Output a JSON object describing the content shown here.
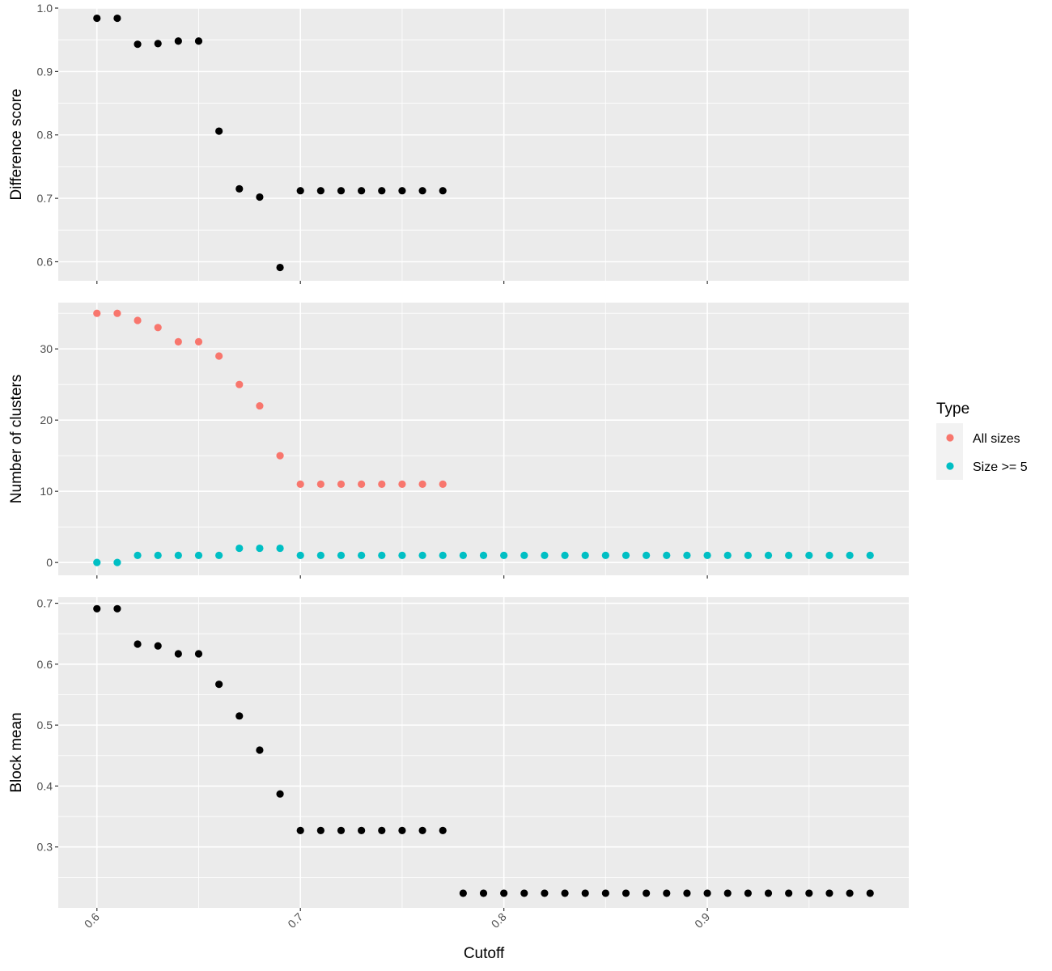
{
  "chart_data": [
    {
      "type": "scatter",
      "ylabel": "Difference score",
      "ylim": [
        0.57,
        1.0
      ],
      "yticks": [
        "0.6",
        "0.7",
        "0.8",
        "0.9",
        "1.0"
      ],
      "series": [
        {
          "color": "#000000",
          "x": [
            0.6,
            0.61,
            0.62,
            0.63,
            0.64,
            0.65,
            0.66,
            0.67,
            0.68,
            0.69,
            0.7,
            0.71,
            0.72,
            0.73,
            0.74,
            0.75,
            0.76,
            0.77
          ],
          "y": [
            0.984,
            0.984,
            0.943,
            0.944,
            0.948,
            0.948,
            0.806,
            0.715,
            0.702,
            0.591,
            0.712,
            0.712,
            0.712,
            0.712,
            0.712,
            0.712,
            0.712,
            0.712
          ]
        }
      ]
    },
    {
      "type": "scatter",
      "ylabel": "Number of clusters",
      "ylim": [
        -1.8,
        36.5
      ],
      "yticks": [
        "0",
        "10",
        "20",
        "30"
      ],
      "series": [
        {
          "name": "All sizes",
          "color": "#F8766D",
          "x": [
            0.6,
            0.61,
            0.62,
            0.63,
            0.64,
            0.65,
            0.66,
            0.67,
            0.68,
            0.69,
            0.7,
            0.71,
            0.72,
            0.73,
            0.74,
            0.75,
            0.76,
            0.77
          ],
          "y": [
            35,
            35,
            34,
            33,
            31,
            31,
            29,
            25,
            22,
            15,
            11,
            11,
            11,
            11,
            11,
            11,
            11,
            11
          ]
        },
        {
          "name": "Size >= 5",
          "color": "#00BFC4",
          "x": [
            0.6,
            0.61,
            0.62,
            0.63,
            0.64,
            0.65,
            0.66,
            0.67,
            0.68,
            0.69,
            0.7,
            0.71,
            0.72,
            0.73,
            0.74,
            0.75,
            0.76,
            0.77,
            0.78,
            0.79,
            0.8,
            0.81,
            0.82,
            0.83,
            0.84,
            0.85,
            0.86,
            0.87,
            0.88,
            0.89,
            0.9,
            0.91,
            0.92,
            0.93,
            0.94,
            0.95,
            0.96,
            0.97,
            0.98
          ],
          "y": [
            0,
            0,
            1,
            1,
            1,
            1,
            1,
            2,
            2,
            2,
            1,
            1,
            1,
            1,
            1,
            1,
            1,
            1,
            1,
            1,
            1,
            1,
            1,
            1,
            1,
            1,
            1,
            1,
            1,
            1,
            1,
            1,
            1,
            1,
            1,
            1,
            1,
            1,
            1
          ]
        }
      ]
    },
    {
      "type": "scatter",
      "ylabel": "Block mean",
      "ylim": [
        0.2,
        0.71
      ],
      "yticks": [
        "0.3",
        "0.4",
        "0.5",
        "0.6",
        "0.7"
      ],
      "series": [
        {
          "color": "#000000",
          "x": [
            0.6,
            0.61,
            0.62,
            0.63,
            0.64,
            0.65,
            0.66,
            0.67,
            0.68,
            0.69,
            0.7,
            0.71,
            0.72,
            0.73,
            0.74,
            0.75,
            0.76,
            0.77,
            0.78,
            0.79,
            0.8,
            0.81,
            0.82,
            0.83,
            0.84,
            0.85,
            0.86,
            0.87,
            0.88,
            0.89,
            0.9,
            0.91,
            0.92,
            0.93,
            0.94,
            0.95,
            0.96,
            0.97,
            0.98
          ],
          "y": [
            0.691,
            0.691,
            0.633,
            0.63,
            0.617,
            0.617,
            0.567,
            0.515,
            0.459,
            0.387,
            0.327,
            0.327,
            0.327,
            0.327,
            0.327,
            0.327,
            0.327,
            0.327,
            0.224,
            0.224,
            0.224,
            0.224,
            0.224,
            0.224,
            0.224,
            0.224,
            0.224,
            0.224,
            0.224,
            0.224,
            0.224,
            0.224,
            0.224,
            0.224,
            0.224,
            0.224,
            0.224,
            0.224,
            0.224
          ]
        }
      ]
    }
  ],
  "x_axis": {
    "label": "Cutoff",
    "xlim": [
      0.581,
      0.999
    ],
    "ticks": [
      "0.6",
      "0.7",
      "0.8",
      "0.9"
    ]
  },
  "legend": {
    "title": "Type",
    "placement": "right",
    "items": [
      {
        "label": "All sizes",
        "color": "#F8766D"
      },
      {
        "label": "Size >= 5",
        "color": "#00BFC4"
      }
    ]
  },
  "colors": {
    "panel_background": "#EBEBEB",
    "grid_major": "#FFFFFF"
  }
}
